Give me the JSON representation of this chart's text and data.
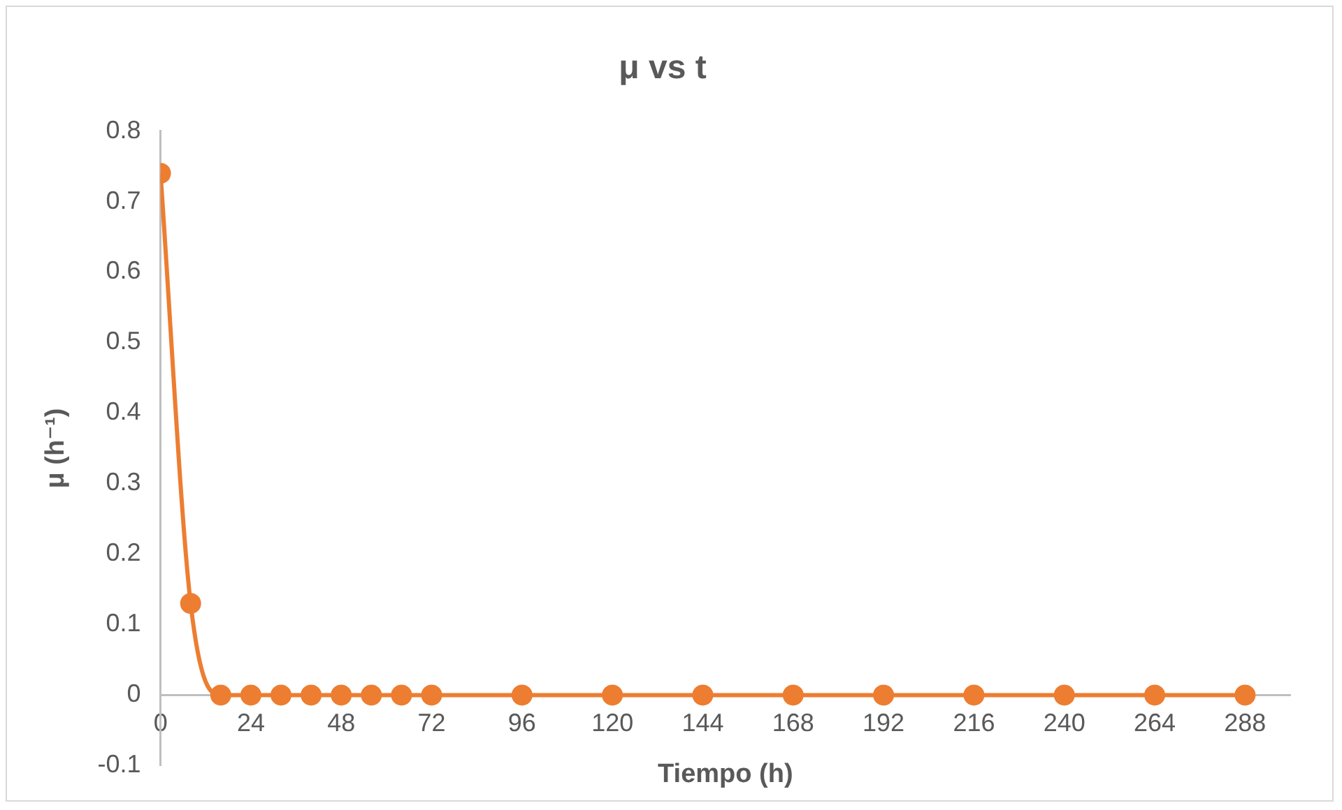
{
  "chart_data": {
    "type": "line",
    "title": "μ vs t",
    "xlabel": "Tiempo (h)",
    "ylabel": "μ (h⁻¹)",
    "x": [
      0,
      8,
      16,
      24,
      32,
      40,
      48,
      56,
      64,
      72,
      96,
      120,
      144,
      168,
      192,
      216,
      240,
      264,
      288
    ],
    "series": [
      {
        "color": "#ed7d31",
        "values": [
          0.74,
          0.13,
          0,
          0,
          0,
          0,
          0,
          0,
          0,
          0,
          0,
          0,
          0,
          0,
          0,
          0,
          0,
          0,
          0
        ]
      }
    ],
    "xlim": [
      0,
      300
    ],
    "xticks": [
      0,
      24,
      48,
      72,
      96,
      120,
      144,
      168,
      192,
      216,
      240,
      264,
      288
    ],
    "ylim": [
      -0.1,
      0.8
    ],
    "yticks": [
      -0.1,
      0,
      0.1,
      0.2,
      0.3,
      0.4,
      0.5,
      0.6,
      0.7,
      0.8
    ],
    "grid": false,
    "legend": false,
    "marker": "circle",
    "line_style": "solid"
  }
}
